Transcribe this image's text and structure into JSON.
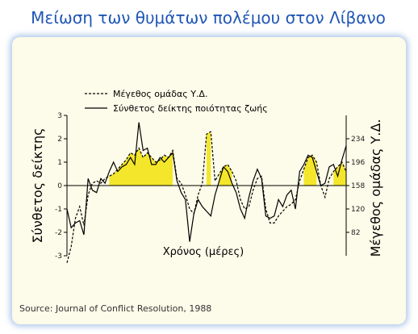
{
  "header": {
    "title": "Μείωση των θυμάτων πολέμου στον Λίβανο"
  },
  "footer": {
    "source": "Source: Journal of Conflict Resolution, 1988"
  },
  "colors": {
    "title": "#1f56b5",
    "fill": "#f4e62a",
    "panel": "#fdfbe9"
  },
  "chart_data": {
    "type": "line",
    "title": "",
    "xlabel": "Χρόνος (μέρες)",
    "ylabel_left": "Σύνθετος δείκτης",
    "ylabel_right": "Μέγεθος ομάδας Υ.Δ.",
    "ylim_left": [
      -3,
      3
    ],
    "yticks_left": [
      "3",
      "2",
      "1",
      "0",
      "-1",
      "-2",
      "-3"
    ],
    "yticks_right": [
      "234",
      "196",
      "158",
      "120",
      "82"
    ],
    "legend_position": "top",
    "series": [
      {
        "name": "Μέγεθος ομάδας Υ.Δ.",
        "style": "dashed",
        "values": [
          -3.3,
          -2.6,
          -1.4,
          -0.9,
          -1.7,
          -0.4,
          0.1,
          0.2,
          0.1,
          0.3,
          0.4,
          0.5,
          0.7,
          0.9,
          1.1,
          1.4,
          1.3,
          1.6,
          1.2,
          1.4,
          1.2,
          1.0,
          1.1,
          1.3,
          1.2,
          1.5,
          0.3,
          0.1,
          -0.4,
          -1.0,
          -1.2,
          -0.4,
          0.1,
          2.2,
          2.3,
          0.2,
          0.5,
          0.8,
          0.9,
          0.6,
          0.2,
          -0.6,
          -1.0,
          -0.9,
          -0.2,
          0.3,
          0.4,
          -1.0,
          -1.6,
          -1.6,
          -1.3,
          -1.1,
          -0.9,
          -0.8,
          -0.6,
          0.2,
          0.7,
          1.2,
          1.3,
          1.0,
          0.0,
          -0.5,
          0.3,
          0.6,
          0.8,
          1.0,
          0.6
        ]
      },
      {
        "name": "Σύνθετος δείκτης ποιότητας ζωής",
        "style": "solid",
        "values": [
          -1.0,
          -1.8,
          -1.6,
          -1.5,
          -2.1,
          0.3,
          -0.2,
          -0.3,
          0.3,
          0.1,
          0.6,
          1.0,
          0.6,
          0.8,
          0.9,
          1.2,
          0.9,
          2.7,
          1.5,
          1.6,
          0.9,
          0.9,
          1.2,
          1.0,
          1.2,
          1.4,
          0.2,
          -0.3,
          -0.6,
          -2.4,
          -1.2,
          -0.6,
          -0.9,
          -1.1,
          -1.3,
          -0.4,
          0.2,
          0.8,
          0.6,
          0.1,
          -0.3,
          -1.0,
          -1.4,
          -0.5,
          0.2,
          0.7,
          0.3,
          -1.3,
          -1.4,
          -1.3,
          -0.6,
          -0.9,
          -0.4,
          -0.2,
          -1.0,
          0.6,
          0.9,
          1.3,
          1.2,
          0.6,
          0.0,
          0.1,
          0.8,
          0.9,
          0.4,
          1.1,
          1.7
        ]
      }
    ],
    "grid": false
  }
}
